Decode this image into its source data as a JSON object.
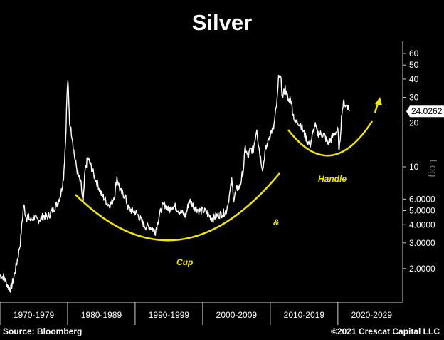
{
  "title": "Silver",
  "footer": {
    "source": "Source: Bloomberg",
    "credit": "©2021 Crescat Capital LLC"
  },
  "colors": {
    "background": "#000000",
    "price_line": "#ffffff",
    "annotation": "#f3e600",
    "axis": "#cfcfcf",
    "y_label": "#6e6e6e",
    "last_price_box": "#ffffff"
  },
  "chart_data": {
    "type": "line",
    "title": "Silver",
    "xlabel": "",
    "ylabel": "Log",
    "y_scale": "log",
    "ylim": [
      1.3,
      72
    ],
    "xlim": [
      1970,
      2030
    ],
    "grid": false,
    "legend": "none",
    "x_categories": [
      "1970-1979",
      "1980-1989",
      "1990-1999",
      "2000-2009",
      "2010-2019",
      "2020-2029"
    ],
    "y_ticks": [
      {
        "value": 2,
        "label": "2.0000"
      },
      {
        "value": 3,
        "label": "3.0000"
      },
      {
        "value": 4,
        "label": "4.0000"
      },
      {
        "value": 5,
        "label": "5.0000"
      },
      {
        "value": 6,
        "label": "6.0000"
      },
      {
        "value": 10,
        "label": "10"
      },
      {
        "value": 20,
        "label": "20"
      },
      {
        "value": 30,
        "label": "30"
      },
      {
        "value": 40,
        "label": "40"
      },
      {
        "value": 50,
        "label": "50"
      },
      {
        "value": 60,
        "label": "60"
      }
    ],
    "last_price": {
      "value": 24.0262,
      "label": "24.0262"
    },
    "series": [
      {
        "x": [
          1970.0,
          1970.6,
          1971.2,
          1971.6,
          1972.0,
          1972.5,
          1973.0,
          1973.5,
          1973.9,
          1974.1,
          1974.5,
          1975.0,
          1975.5,
          1976.0,
          1976.5,
          1977.0,
          1977.5,
          1978.0,
          1978.5,
          1979.0,
          1979.4,
          1979.7,
          1979.9,
          1980.05,
          1980.3,
          1980.7,
          1981.0,
          1981.5,
          1982.0,
          1982.3,
          1982.6,
          1983.0,
          1983.5,
          1984.0,
          1984.5,
          1985.0,
          1985.5,
          1986.0,
          1986.5,
          1987.0,
          1987.3,
          1987.8,
          1988.5,
          1989.0,
          1989.5,
          1990.0,
          1990.5,
          1991.0,
          1991.5,
          1992.0,
          1992.5,
          1993.0,
          1993.5,
          1994.0,
          1994.5,
          1995.0,
          1995.5,
          1996.0,
          1996.5,
          1997.0,
          1997.5,
          1998.0,
          1998.5,
          1999.0,
          1999.5,
          2000.0,
          2000.5,
          2001.0,
          2001.5,
          2002.0,
          2002.5,
          2003.0,
          2003.5,
          2004.0,
          2004.3,
          2004.6,
          2005.0,
          2005.5,
          2006.0,
          2006.3,
          2006.7,
          2007.0,
          2007.5,
          2008.0,
          2008.2,
          2008.5,
          2008.9,
          2009.2,
          2009.6,
          2010.0,
          2010.5,
          2011.0,
          2011.3,
          2011.6,
          2011.8,
          2012.2,
          2012.7,
          2013.0,
          2013.3,
          2013.7,
          2014.0,
          2014.5,
          2015.0,
          2015.5,
          2015.9,
          2016.2,
          2016.6,
          2017.0,
          2017.5,
          2018.0,
          2018.5,
          2019.0,
          2019.5,
          2020.0,
          2020.2,
          2020.6,
          2020.9,
          2021.2,
          2021.4,
          2021.7
        ],
        "y": [
          1.8,
          1.75,
          1.5,
          1.45,
          1.7,
          2.2,
          3.0,
          5.5,
          4.4,
          4.6,
          4.3,
          4.5,
          4.3,
          4.4,
          4.6,
          4.5,
          4.8,
          5.2,
          5.6,
          6.5,
          8.5,
          15.0,
          30.0,
          40.0,
          20.0,
          16.0,
          12.0,
          9.0,
          7.5,
          5.5,
          9.5,
          11.5,
          10.0,
          8.5,
          7.5,
          6.5,
          6.0,
          5.5,
          5.6,
          6.5,
          8.5,
          6.8,
          6.3,
          5.2,
          5.0,
          4.9,
          4.6,
          4.2,
          3.9,
          3.9,
          3.8,
          3.6,
          4.5,
          5.3,
          5.5,
          5.0,
          5.4,
          5.3,
          5.0,
          4.8,
          4.6,
          5.9,
          5.5,
          5.2,
          5.0,
          5.0,
          4.9,
          4.6,
          4.4,
          4.6,
          4.7,
          4.8,
          5.0,
          6.5,
          8.0,
          6.0,
          7.0,
          7.3,
          9.5,
          13.5,
          11.5,
          13.0,
          13.2,
          18.5,
          15.0,
          12.0,
          9.5,
          12.5,
          14.5,
          17.0,
          18.5,
          28.0,
          45.0,
          38.0,
          30.0,
          35.0,
          28.0,
          30.0,
          24.0,
          20.0,
          20.5,
          19.5,
          17.0,
          15.0,
          14.2,
          16.0,
          19.5,
          17.0,
          16.8,
          16.5,
          14.5,
          15.5,
          17.0,
          17.8,
          12.5,
          24.0,
          28.0,
          26.0,
          27.0,
          24.0
        ]
      }
    ],
    "annotations": [
      {
        "text": "Cup"
      },
      {
        "text": "&"
      },
      {
        "text": "Handle"
      }
    ]
  }
}
